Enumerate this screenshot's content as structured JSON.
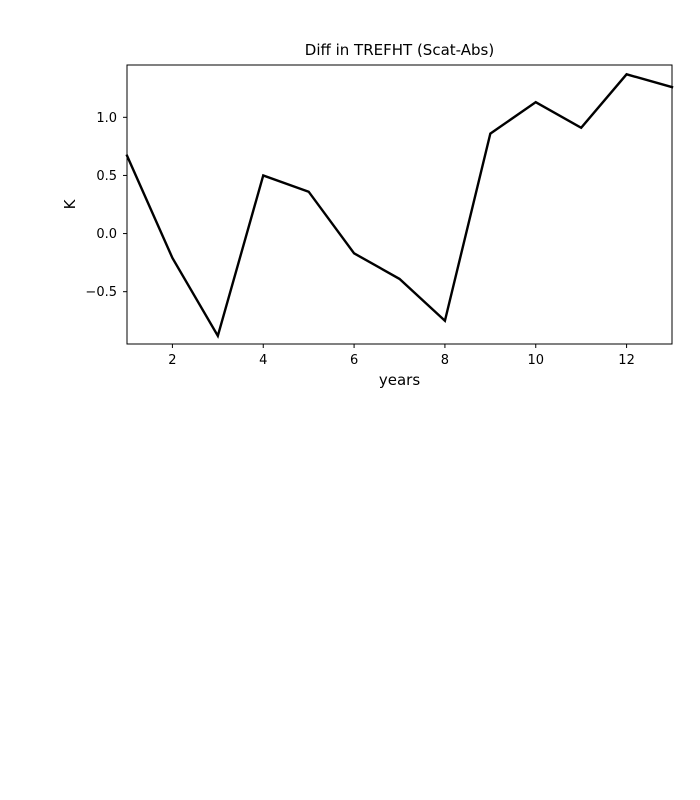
{
  "chart_data": {
    "type": "line",
    "title": "Diff in TREFHT (Scat-Abs)",
    "xlabel": "years",
    "ylabel": "K",
    "xlim": [
      1,
      13
    ],
    "ylim": [
      -0.95,
      1.45
    ],
    "xticks": [
      2,
      4,
      6,
      8,
      10,
      12
    ],
    "yticks": [
      -0.5,
      0.0,
      0.5,
      1.0
    ],
    "xtick_labels": [
      "2",
      "4",
      "6",
      "8",
      "10",
      "12"
    ],
    "ytick_labels": [
      "−0.5",
      "0.0",
      "0.5",
      "1.0"
    ],
    "grid": false,
    "series": [
      {
        "color": "#000000",
        "x": [
          1,
          2,
          3,
          4,
          5,
          6,
          7,
          8,
          9,
          10,
          11,
          12,
          13
        ],
        "y": [
          0.67,
          -0.21,
          -0.88,
          0.5,
          0.36,
          -0.17,
          -0.39,
          -0.75,
          0.86,
          1.13,
          0.91,
          1.37,
          1.26
        ]
      }
    ]
  }
}
